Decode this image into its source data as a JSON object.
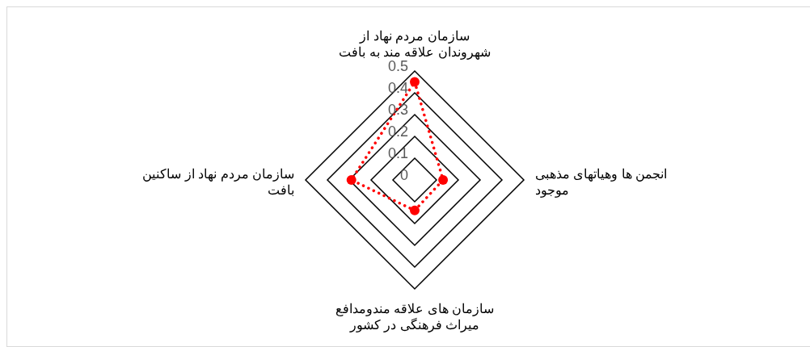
{
  "chart_data": {
    "type": "radar",
    "categories": [
      "سازمان مردم نهاد از شهروندان علاقه مند به بافت",
      "انجمن ها وهیاتهای مذهبی موجود",
      "سازمان های علاقه مندومدافع میراث فرهنگی در کشور",
      "سازمان مردم نهاد از ساکنین بافت"
    ],
    "series": [
      {
        "color": "#ff0000",
        "values": [
          0.45,
          0.13,
          0.14,
          0.29
        ]
      }
    ],
    "ylim": [
      0,
      0.5
    ],
    "yticks": [
      0,
      0.1,
      0.2,
      0.3,
      0.4,
      0.5
    ],
    "grid": true,
    "marker": "circle",
    "line_style": "dotted"
  }
}
